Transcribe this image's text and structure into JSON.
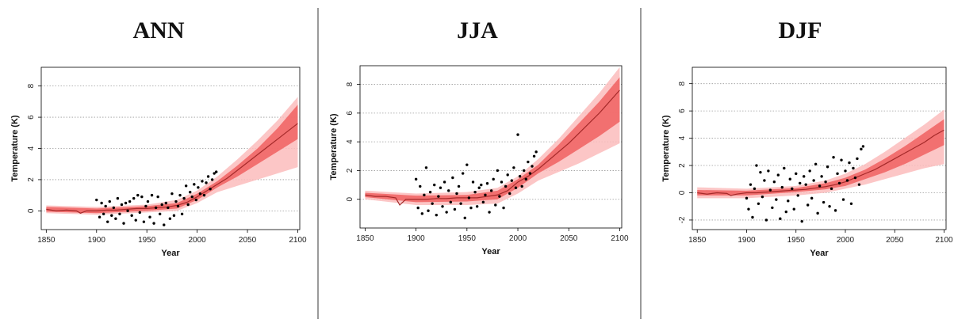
{
  "panels": [
    {
      "title": "ANN",
      "chart_data": {
        "type": "line",
        "title": "ANN",
        "xlabel": "Year",
        "ylabel": "Temperature (K)",
        "xlim": [
          1845,
          2102
        ],
        "ylim": [
          -1.2,
          9.2
        ],
        "xticks": [
          1850,
          1900,
          1950,
          2000,
          2050,
          2100
        ],
        "yticks": [
          0,
          2,
          4,
          6,
          8
        ],
        "grid": "horizontal dotted",
        "series": [
          {
            "role": "median",
            "x": [
              1850,
              1860,
              1870,
              1880,
              1884,
              1890,
              1900,
              1910,
              1920,
              1930,
              1940,
              1950,
              1960,
              1970,
              1980,
              1990,
              2000,
              2010,
              2020,
              2030,
              2040,
              2050,
              2060,
              2070,
              2080,
              2090,
              2100
            ],
            "y": [
              0.1,
              0.0,
              0.05,
              0.0,
              -0.15,
              0.0,
              0.0,
              0.05,
              0.05,
              0.1,
              0.15,
              0.15,
              0.2,
              0.25,
              0.35,
              0.55,
              0.9,
              1.3,
              1.7,
              2.1,
              2.6,
              3.1,
              3.6,
              4.1,
              4.6,
              5.1,
              5.6
            ]
          },
          {
            "role": "outer band",
            "x": [
              1850,
              1900,
              1950,
              1980,
              2000,
              2020,
              2040,
              2060,
              2080,
              2100
            ],
            "upper": [
              0.35,
              0.25,
              0.4,
              0.7,
              1.3,
              2.2,
              3.3,
              4.5,
              5.8,
              7.3
            ],
            "lower": [
              -0.15,
              -0.25,
              -0.1,
              0.0,
              0.5,
              1.2,
              1.6,
              2.0,
              2.4,
              2.8
            ]
          },
          {
            "role": "inner band",
            "x": [
              1850,
              1900,
              1950,
              1980,
              2000,
              2020,
              2040,
              2060,
              2080,
              2100
            ],
            "upper": [
              0.25,
              0.15,
              0.3,
              0.5,
              1.1,
              1.9,
              2.9,
              4.0,
              5.3,
              6.8
            ],
            "lower": [
              -0.05,
              -0.15,
              0.0,
              0.15,
              0.7,
              1.5,
              2.2,
              3.0,
              3.8,
              4.6
            ]
          }
        ],
        "observations": {
          "x": [
            1900,
            1903,
            1905,
            1907,
            1909,
            1911,
            1913,
            1915,
            1917,
            1919,
            1921,
            1923,
            1925,
            1927,
            1929,
            1931,
            1933,
            1935,
            1937,
            1939,
            1941,
            1943,
            1945,
            1947,
            1949,
            1951,
            1953,
            1955,
            1957,
            1959,
            1961,
            1963,
            1965,
            1967,
            1969,
            1971,
            1973,
            1975,
            1977,
            1979,
            1981,
            1983,
            1985,
            1987,
            1989,
            1991,
            1993,
            1995,
            1997,
            1999,
            2001,
            2003,
            2005,
            2007,
            2009,
            2011,
            2013,
            2015,
            2017,
            2019
          ],
          "y": [
            0.7,
            -0.4,
            0.5,
            -0.2,
            0.3,
            -0.7,
            0.6,
            -0.3,
            0.2,
            -0.5,
            0.8,
            -0.2,
            0.4,
            -0.8,
            0.5,
            0.0,
            0.6,
            -0.3,
            0.8,
            -0.6,
            1.0,
            -0.1,
            0.9,
            -0.7,
            0.3,
            0.6,
            -0.4,
            1.0,
            -0.8,
            0.2,
            0.9,
            -0.2,
            0.4,
            -0.9,
            0.5,
            0.2,
            -0.5,
            1.1,
            -0.3,
            0.6,
            0.3,
            1.0,
            -0.2,
            0.8,
            1.6,
            0.4,
            1.2,
            0.9,
            1.7,
            0.7,
            1.5,
            1.1,
            1.9,
            1.0,
            1.8,
            2.2,
            1.4,
            2.0,
            2.4,
            2.5
          ]
        }
      }
    },
    {
      "title": "JJA",
      "chart_data": {
        "type": "line",
        "title": "JJA",
        "xlabel": "Year",
        "ylabel": "Temperature (K)",
        "xlim": [
          1845,
          2102
        ],
        "ylim": [
          -2.0,
          9.3
        ],
        "xticks": [
          1850,
          1900,
          1950,
          2000,
          2050,
          2100
        ],
        "yticks": [
          0,
          2,
          4,
          6,
          8
        ],
        "grid": "horizontal dotted",
        "series": [
          {
            "role": "median",
            "x": [
              1850,
              1860,
              1870,
              1880,
              1884,
              1890,
              1900,
              1910,
              1920,
              1930,
              1940,
              1950,
              1960,
              1970,
              1980,
              1990,
              2000,
              2010,
              2020,
              2030,
              2040,
              2050,
              2060,
              2070,
              2080,
              2090,
              2100
            ],
            "y": [
              0.3,
              0.2,
              0.2,
              0.1,
              -0.4,
              0.0,
              0.0,
              0.0,
              0.05,
              0.05,
              0.1,
              0.1,
              0.1,
              0.2,
              0.3,
              0.6,
              1.2,
              1.6,
              2.1,
              2.7,
              3.3,
              3.9,
              4.6,
              5.3,
              6.0,
              6.8,
              7.6
            ]
          },
          {
            "role": "outer band",
            "x": [
              1850,
              1900,
              1950,
              1980,
              2000,
              2020,
              2040,
              2060,
              2080,
              2100
            ],
            "upper": [
              0.6,
              0.4,
              0.5,
              0.8,
              1.6,
              2.8,
              4.2,
              5.8,
              7.4,
              9.2
            ],
            "lower": [
              0.0,
              -0.4,
              -0.4,
              -0.3,
              0.4,
              1.3,
              1.9,
              2.5,
              3.2,
              3.9
            ]
          },
          {
            "role": "inner band",
            "x": [
              1850,
              1900,
              1950,
              1980,
              2000,
              2020,
              2040,
              2060,
              2080,
              2100
            ],
            "upper": [
              0.45,
              0.25,
              0.3,
              0.6,
              1.4,
              2.4,
              3.8,
              5.3,
              6.8,
              8.5
            ],
            "lower": [
              0.15,
              -0.2,
              -0.15,
              0.0,
              0.8,
              1.8,
              2.6,
              3.5,
              4.4,
              5.4
            ]
          }
        ],
        "observations": {
          "x": [
            1900,
            1902,
            1904,
            1906,
            1908,
            1910,
            1912,
            1914,
            1916,
            1918,
            1920,
            1922,
            1924,
            1926,
            1928,
            1930,
            1932,
            1934,
            1936,
            1938,
            1940,
            1942,
            1944,
            1946,
            1948,
            1950,
            1952,
            1954,
            1956,
            1958,
            1960,
            1962,
            1964,
            1966,
            1968,
            1970,
            1972,
            1974,
            1976,
            1978,
            1980,
            1982,
            1984,
            1986,
            1988,
            1990,
            1992,
            1994,
            1996,
            1998,
            2000,
            2002,
            2004,
            2006,
            2008,
            2010,
            2012,
            2014,
            2016,
            2018
          ],
          "y": [
            1.4,
            -0.6,
            0.9,
            -1.0,
            0.3,
            2.2,
            -0.8,
            0.5,
            -0.3,
            1.0,
            -1.1,
            0.2,
            0.8,
            -0.5,
            1.2,
            -0.9,
            0.6,
            -0.2,
            1.5,
            -0.7,
            0.4,
            0.9,
            -0.3,
            1.8,
            -1.3,
            2.4,
            0.1,
            -0.6,
            1.2,
            0.5,
            -0.5,
            0.8,
            1.0,
            -0.2,
            0.3,
            1.1,
            -0.9,
            0.6,
            1.4,
            -0.4,
            2.0,
            0.2,
            1.2,
            -0.6,
            0.9,
            1.7,
            0.4,
            1.3,
            2.2,
            0.8,
            4.5,
            1.6,
            0.9,
            2.0,
            1.4,
            2.6,
            1.8,
            2.3,
            3.0,
            3.3
          ]
        }
      }
    },
    {
      "title": "DJF",
      "chart_data": {
        "type": "line",
        "title": "DJF",
        "xlabel": "Year",
        "ylabel": "Temperature (K)",
        "xlim": [
          1845,
          2102
        ],
        "ylim": [
          -2.7,
          9.2
        ],
        "xticks": [
          1850,
          1900,
          1950,
          2000,
          2050,
          2100
        ],
        "yticks": [
          -2,
          0,
          2,
          4,
          6,
          8
        ],
        "grid": "horizontal dotted",
        "series": [
          {
            "role": "median",
            "x": [
              1850,
              1860,
              1870,
              1880,
              1884,
              1890,
              1900,
              1910,
              1920,
              1930,
              1940,
              1950,
              1960,
              1970,
              1980,
              1990,
              2000,
              2010,
              2020,
              2030,
              2040,
              2050,
              2060,
              2070,
              2080,
              2090,
              2100
            ],
            "y": [
              0.0,
              -0.1,
              0.0,
              -0.05,
              -0.2,
              -0.1,
              0.0,
              0.0,
              0.05,
              0.1,
              0.15,
              0.2,
              0.25,
              0.35,
              0.45,
              0.6,
              0.8,
              1.1,
              1.4,
              1.7,
              2.1,
              2.5,
              2.9,
              3.3,
              3.7,
              4.2,
              4.6
            ]
          },
          {
            "role": "outer band",
            "x": [
              1850,
              1900,
              1950,
              1980,
              2000,
              2020,
              2040,
              2060,
              2080,
              2100
            ],
            "upper": [
              0.4,
              0.3,
              0.5,
              0.9,
              1.4,
              2.1,
              3.0,
              4.0,
              5.0,
              6.1
            ],
            "lower": [
              -0.4,
              -0.4,
              -0.2,
              0.0,
              0.3,
              0.6,
              1.0,
              1.4,
              1.8,
              2.1
            ]
          },
          {
            "role": "inner band",
            "x": [
              1850,
              1900,
              1950,
              1980,
              2000,
              2020,
              2040,
              2060,
              2080,
              2100
            ],
            "upper": [
              0.2,
              0.15,
              0.35,
              0.7,
              1.1,
              1.7,
              2.5,
              3.4,
              4.4,
              5.4
            ],
            "lower": [
              -0.2,
              -0.2,
              0.05,
              0.25,
              0.5,
              1.0,
              1.5,
              2.1,
              2.8,
              3.5
            ]
          }
        ],
        "observations": {
          "x": [
            1900,
            1902,
            1904,
            1906,
            1908,
            1910,
            1912,
            1914,
            1916,
            1918,
            1920,
            1922,
            1924,
            1926,
            1928,
            1930,
            1932,
            1934,
            1936,
            1938,
            1940,
            1942,
            1944,
            1946,
            1948,
            1950,
            1952,
            1954,
            1956,
            1958,
            1960,
            1962,
            1964,
            1966,
            1968,
            1970,
            1972,
            1974,
            1976,
            1978,
            1980,
            1982,
            1984,
            1986,
            1988,
            1990,
            1992,
            1994,
            1996,
            1998,
            2000,
            2002,
            2004,
            2006,
            2008,
            2010,
            2012,
            2014,
            2016,
            2018
          ],
          "y": [
            -0.4,
            -1.2,
            0.6,
            -1.8,
            0.3,
            2.0,
            -0.8,
            1.5,
            -0.3,
            0.9,
            -2.0,
            1.6,
            0.2,
            -1.1,
            0.8,
            -0.5,
            1.3,
            -1.9,
            0.4,
            1.8,
            -1.4,
            -0.6,
            1.0,
            0.3,
            -1.2,
            1.4,
            -0.2,
            0.7,
            -2.1,
            1.2,
            0.6,
            -0.9,
            1.6,
            -0.4,
            0.9,
            2.1,
            -1.5,
            0.5,
            1.2,
            -0.7,
            0.8,
            1.9,
            -1.0,
            0.3,
            2.6,
            -1.3,
            1.4,
            0.7,
            2.4,
            -0.5,
            1.6,
            0.9,
            2.2,
            -0.8,
            1.8,
            1.1,
            2.5,
            0.6,
            3.2,
            3.4
          ]
        }
      }
    }
  ],
  "colors": {
    "outer_band": "#fcbcbc",
    "inner_band": "#f06060",
    "median_line": "#a52a2a",
    "observations": "#000000",
    "grid": "#9a9a9a",
    "divider": "#9a9a9a"
  }
}
